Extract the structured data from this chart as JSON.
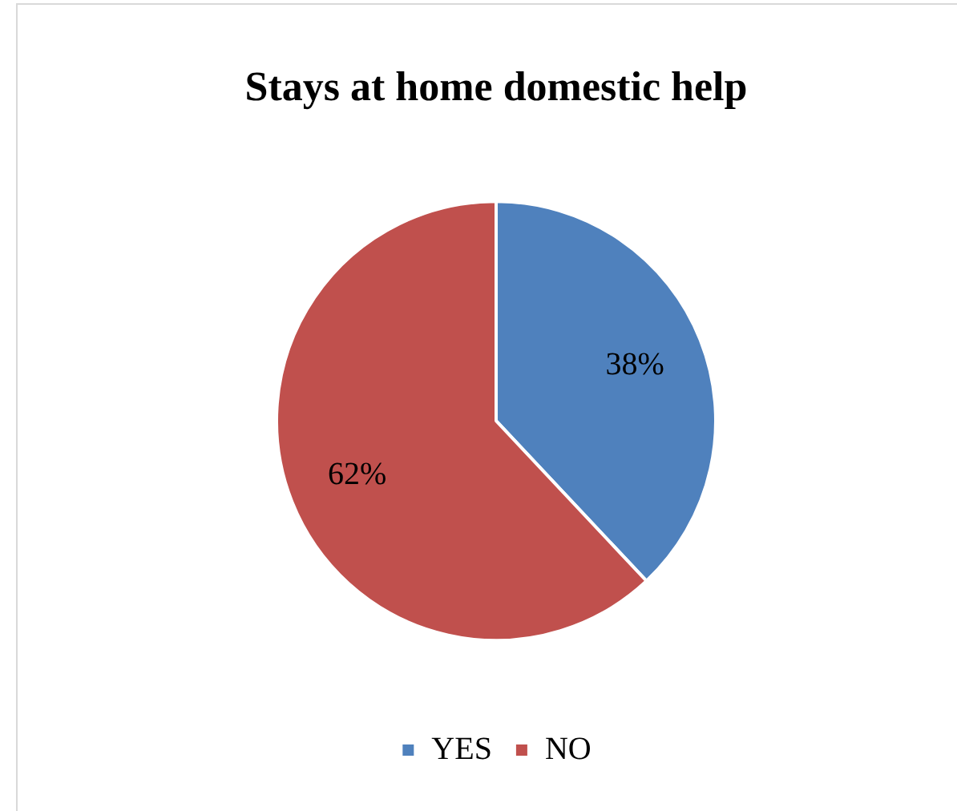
{
  "chart_data": {
    "type": "pie",
    "title": "Stays at home domestic help",
    "categories": [
      "YES",
      "NO"
    ],
    "values": [
      38,
      62
    ],
    "colors": [
      "#4f81bd",
      "#c0504d"
    ],
    "value_labels": [
      "38%",
      "62%"
    ],
    "legend": "bottom"
  }
}
